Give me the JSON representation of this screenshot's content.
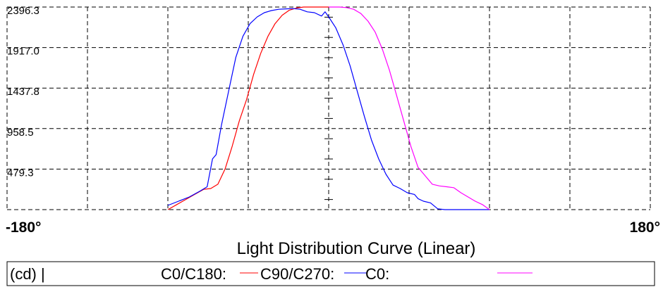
{
  "chart_data": {
    "type": "line",
    "title": "Light Distribution Curve (Linear)",
    "xlabel": "",
    "ylabel": "",
    "xlim": [
      -180,
      180
    ],
    "ylim": [
      0,
      2396.3
    ],
    "x_tick_labels": [
      "-180°",
      "180°"
    ],
    "y_ticks": [
      479.3,
      958.5,
      1437.8,
      1917.0,
      2396.3
    ],
    "y_tick_labels": [
      "479.3",
      "958.5",
      "1437.8",
      "1917.0",
      "2396.3"
    ],
    "grid": true,
    "legend": {
      "position": "bottom",
      "unit_label": "(cd) |",
      "entries": [
        "C0/C180:",
        "C90/C270:",
        "C0:"
      ]
    },
    "series": [
      {
        "name": "C0/C180:",
        "color": "#ff0000",
        "x": [
          -90,
          -85,
          -80,
          -75,
          -70,
          -66,
          -62,
          -58,
          -54,
          -50,
          -46,
          -42,
          -38,
          -34,
          -30,
          -26,
          -22,
          -18,
          -14,
          -10,
          -6,
          -3,
          0
        ],
        "y": [
          0,
          60,
          120,
          180,
          240,
          250,
          300,
          480,
          750,
          1050,
          1300,
          1600,
          1850,
          2050,
          2200,
          2300,
          2360,
          2385,
          2396,
          2396,
          2396,
          2396,
          2396
        ]
      },
      {
        "name": "C90/C270:",
        "color": "#0000ff",
        "x": [
          -90,
          -84,
          -78,
          -72,
          -68,
          -65,
          -63,
          -60,
          -56,
          -52,
          -48,
          -44,
          -40,
          -36,
          -32,
          -28,
          -24,
          -20,
          -16,
          -12,
          -8,
          -4,
          -2,
          0,
          4,
          8,
          12,
          16,
          20,
          24,
          28,
          32,
          36,
          40,
          44,
          48,
          50,
          53,
          57,
          61,
          65,
          70,
          75,
          80,
          85,
          90
        ],
        "y": [
          50,
          100,
          150,
          220,
          270,
          600,
          650,
          1000,
          1400,
          1800,
          2050,
          2200,
          2280,
          2330,
          2355,
          2370,
          2375,
          2378,
          2370,
          2340,
          2330,
          2290,
          2340,
          2280,
          2150,
          1950,
          1700,
          1400,
          1100,
          820,
          600,
          420,
          290,
          250,
          200,
          180,
          130,
          100,
          80,
          10,
          0,
          0,
          0,
          0,
          0,
          0
        ]
      },
      {
        "name": "C0:",
        "color": "#ff00ff",
        "x": [
          0,
          3,
          6,
          10,
          14,
          18,
          22,
          26,
          30,
          34,
          38,
          42,
          46,
          50,
          54,
          58,
          62,
          66,
          70,
          74,
          78,
          82,
          86,
          90
        ],
        "y": [
          2396,
          2396,
          2396,
          2390,
          2370,
          2320,
          2230,
          2100,
          1900,
          1650,
          1350,
          1050,
          750,
          500,
          400,
          300,
          280,
          270,
          260,
          200,
          150,
          100,
          60,
          0
        ]
      }
    ]
  }
}
